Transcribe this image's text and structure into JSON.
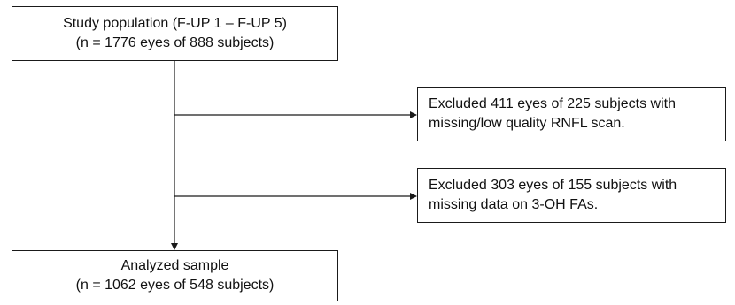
{
  "boxes": {
    "study_population": {
      "line1": "Study population (F-UP 1 – F-UP 5)",
      "line2": "(n = 1776 eyes of 888 subjects)"
    },
    "exclusion_1": {
      "line1": "Excluded 411 eyes of 225 subjects with",
      "line2": "missing/low quality RNFL scan."
    },
    "exclusion_2": {
      "line1": "Excluded 303 eyes of 155 subjects with",
      "line2": "missing data on 3-OH FAs."
    },
    "analyzed_sample": {
      "line1": "Analyzed sample",
      "line2": "(n = 1062 eyes of 548 subjects)"
    }
  },
  "colors": {
    "stroke": "#1a1a1a",
    "background": "#ffffff"
  }
}
